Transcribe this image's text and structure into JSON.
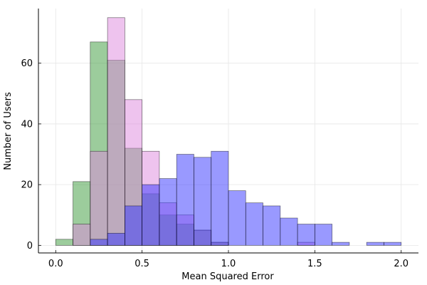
{
  "chart_data": {
    "type": "bar",
    "title": "",
    "xlabel": "Mean Squared Error",
    "ylabel": "Number of Users",
    "xlim": [
      -0.1,
      2.1
    ],
    "ylim": [
      -2.5,
      78
    ],
    "xticks": [
      "0.0",
      "0.5",
      "1.0",
      "1.5",
      "2.0"
    ],
    "yticks": [
      "0",
      "20",
      "40",
      "60"
    ],
    "grid": true,
    "legend": "none",
    "bin_width": 0.1,
    "series": [
      {
        "color": "#3a9a3a",
        "opacity": 0.5,
        "bins": [
          [
            0.0,
            2
          ],
          [
            0.1,
            21
          ],
          [
            0.2,
            67
          ],
          [
            0.3,
            61
          ],
          [
            0.4,
            32
          ],
          [
            0.5,
            17
          ],
          [
            0.6,
            10
          ],
          [
            0.7,
            7
          ],
          [
            0.8,
            5
          ],
          [
            0.9,
            1
          ]
        ]
      },
      {
        "color": "#dd88dd",
        "opacity": 0.5,
        "bins": [
          [
            0.1,
            7
          ],
          [
            0.2,
            31
          ],
          [
            0.3,
            75
          ],
          [
            0.4,
            48
          ],
          [
            0.5,
            31
          ],
          [
            0.6,
            14
          ],
          [
            0.7,
            10
          ],
          [
            0.8,
            5
          ],
          [
            0.9,
            1
          ],
          [
            1.4,
            1
          ]
        ]
      },
      {
        "color": "#3333ff",
        "opacity": 0.5,
        "bins": [
          [
            0.2,
            2
          ],
          [
            0.3,
            4
          ],
          [
            0.4,
            13
          ],
          [
            0.5,
            20
          ],
          [
            0.6,
            22
          ],
          [
            0.7,
            30
          ],
          [
            0.8,
            29
          ],
          [
            0.9,
            31
          ],
          [
            1.0,
            18
          ],
          [
            1.1,
            14
          ],
          [
            1.2,
            13
          ],
          [
            1.3,
            9
          ],
          [
            1.4,
            7
          ],
          [
            1.5,
            7
          ],
          [
            1.6,
            1
          ],
          [
            1.8,
            1
          ],
          [
            1.9,
            1
          ]
        ]
      }
    ]
  }
}
